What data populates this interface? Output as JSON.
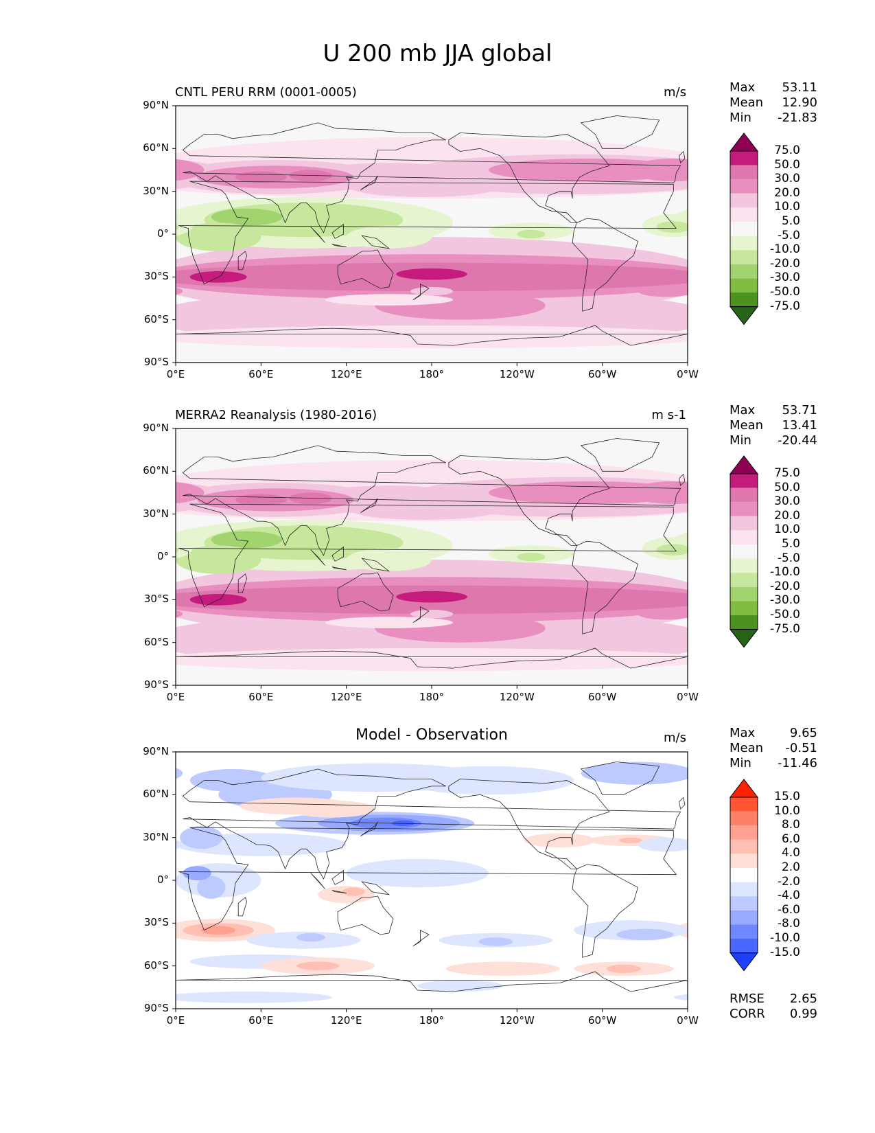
{
  "title": "U 200 mb JJA global",
  "chart_data": [
    {
      "type": "contour-map",
      "title": "CNTL PERU RRM (0001-0005)",
      "units": "m/s",
      "stats": [
        {
          "label": "Max",
          "value": "53.11"
        },
        {
          "label": "Mean",
          "value": "12.90"
        },
        {
          "label": "Min",
          "value": "-21.83"
        }
      ],
      "x_ticks": [
        "0°E",
        "60°E",
        "120°E",
        "180°",
        "120°W",
        "60°W",
        "0°W"
      ],
      "y_ticks": [
        "90°N",
        "60°N",
        "30°N",
        "0°",
        "30°S",
        "60°S",
        "90°S"
      ],
      "colorbar_levels": [
        "75.0",
        "50.0",
        "30.0",
        "20.0",
        "10.0",
        "5.0",
        "-5.0",
        "-10.0",
        "-20.0",
        "-30.0",
        "-50.0",
        "-75.0"
      ],
      "colorbar_colors": [
        "#8e0152",
        "#c51b7d",
        "#de77ae",
        "#e98fc0",
        "#f3c6e0",
        "#fbe4f0",
        "#f7f7f7",
        "#e6f5d0",
        "#c7e89c",
        "#a1d46e",
        "#7fbc41",
        "#4d9221",
        "#276419"
      ]
    },
    {
      "type": "contour-map",
      "title": "MERRA2 Reanalysis (1980-2016)",
      "units": "m s-1",
      "stats": [
        {
          "label": "Max",
          "value": "53.71"
        },
        {
          "label": "Mean",
          "value": "13.41"
        },
        {
          "label": "Min",
          "value": "-20.44"
        }
      ],
      "x_ticks": [
        "0°E",
        "60°E",
        "120°E",
        "180°",
        "120°W",
        "60°W",
        "0°W"
      ],
      "y_ticks": [
        "90°N",
        "60°N",
        "30°N",
        "0°",
        "30°S",
        "60°S",
        "90°S"
      ],
      "colorbar_levels": [
        "75.0",
        "50.0",
        "30.0",
        "20.0",
        "10.0",
        "5.0",
        "-5.0",
        "-10.0",
        "-20.0",
        "-30.0",
        "-50.0",
        "-75.0"
      ],
      "colorbar_colors": [
        "#8e0152",
        "#c51b7d",
        "#de77ae",
        "#e98fc0",
        "#f3c6e0",
        "#fbe4f0",
        "#f7f7f7",
        "#e6f5d0",
        "#c7e89c",
        "#a1d46e",
        "#7fbc41",
        "#4d9221",
        "#276419"
      ]
    },
    {
      "type": "contour-map",
      "title": "Model - Observation",
      "units": "m/s",
      "stats": [
        {
          "label": "Max",
          "value": "9.65"
        },
        {
          "label": "Mean",
          "value": "-0.51"
        },
        {
          "label": "Min",
          "value": "-11.46"
        }
      ],
      "metrics": [
        {
          "label": "RMSE",
          "value": "2.65"
        },
        {
          "label": "CORR",
          "value": "0.99"
        }
      ],
      "x_ticks": [
        "0°E",
        "60°E",
        "120°E",
        "180°",
        "120°W",
        "60°W",
        "0°W"
      ],
      "y_ticks": [
        "90°N",
        "60°N",
        "30°N",
        "0°",
        "30°S",
        "60°S",
        "90°S"
      ],
      "colorbar_levels": [
        "15.0",
        "10.0",
        "8.0",
        "6.0",
        "4.0",
        "2.0",
        "-2.0",
        "-4.0",
        "-6.0",
        "-8.0",
        "-10.0",
        "-15.0"
      ],
      "colorbar_colors": [
        "#ff2200",
        "#ff5533",
        "#ff8066",
        "#ffa090",
        "#ffbfb2",
        "#ffe0d9",
        "#ffffff",
        "#dde5ff",
        "#bccaff",
        "#98aaff",
        "#7088ff",
        "#4a66ff",
        "#1f3fff"
      ]
    }
  ]
}
